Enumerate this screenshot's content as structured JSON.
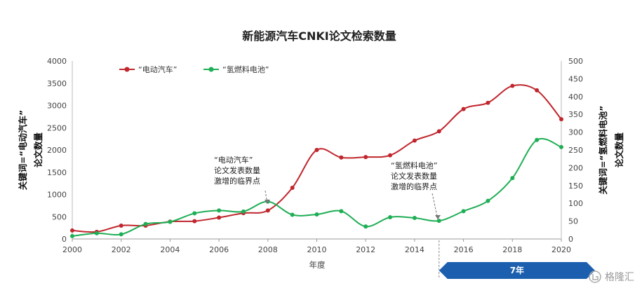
{
  "chart_data": {
    "type": "line",
    "title": "新能源汽车CNKI论文检索数量",
    "xlabel": "年度",
    "ylabel_left": [
      "关键词=“电动汽车”",
      "论文数量"
    ],
    "ylabel_right": [
      "关键词=“氢燃料电池”",
      "论文数量"
    ],
    "x_ticks": [
      2000,
      2002,
      2004,
      2006,
      2008,
      2010,
      2012,
      2014,
      2016,
      2018,
      2020
    ],
    "y_left_ticks": [
      0,
      500,
      1000,
      1500,
      2000,
      2500,
      3000,
      3500,
      4000
    ],
    "y_right_ticks": [
      0,
      50,
      100,
      150,
      200,
      250,
      300,
      350,
      400,
      450,
      500
    ],
    "xlim": [
      2000,
      2020
    ],
    "ylim_left": [
      0,
      4000
    ],
    "ylim_right": [
      0,
      500
    ],
    "legend_position": "top-left",
    "series": [
      {
        "name": "“电动汽车”",
        "axis": "left",
        "color": "#c0262d",
        "x": [
          2000,
          2001,
          2002,
          2003,
          2004,
          2005,
          2006,
          2007,
          2008,
          2009,
          2010,
          2011,
          2012,
          2013,
          2014,
          2015,
          2016,
          2017,
          2018,
          2019,
          2020
        ],
        "values": [
          190,
          160,
          300,
          300,
          390,
          400,
          480,
          580,
          640,
          1150,
          2000,
          1830,
          1840,
          1880,
          2210,
          2420,
          2920,
          3060,
          3440,
          3340,
          2690
        ]
      },
      {
        "name": "“氢燃料电池”",
        "axis": "right",
        "color": "#1fae55",
        "x": [
          2000,
          2001,
          2002,
          2003,
          2004,
          2005,
          2006,
          2007,
          2008,
          2009,
          2010,
          2011,
          2012,
          2013,
          2014,
          2015,
          2016,
          2017,
          2018,
          2019,
          2020
        ],
        "values": [
          8,
          16,
          13,
          42,
          48,
          72,
          80,
          77,
          105,
          68,
          69,
          78,
          35,
          61,
          59,
          51,
          78,
          107,
          171,
          278,
          258
        ]
      }
    ],
    "annotations": [
      {
        "lines": [
          "“电动汽车”",
          "论文发表数量",
          "激增的临界点"
        ],
        "x": 2008,
        "series": 0
      },
      {
        "lines": [
          "“氢燃料电池”",
          "论文发表数量",
          "激增的临界点"
        ],
        "x": 2015,
        "series": 1
      }
    ],
    "banner": {
      "label": "7年",
      "from": 2015,
      "to": 2020,
      "color": "#1b5fae"
    }
  },
  "watermark": "格隆汇"
}
